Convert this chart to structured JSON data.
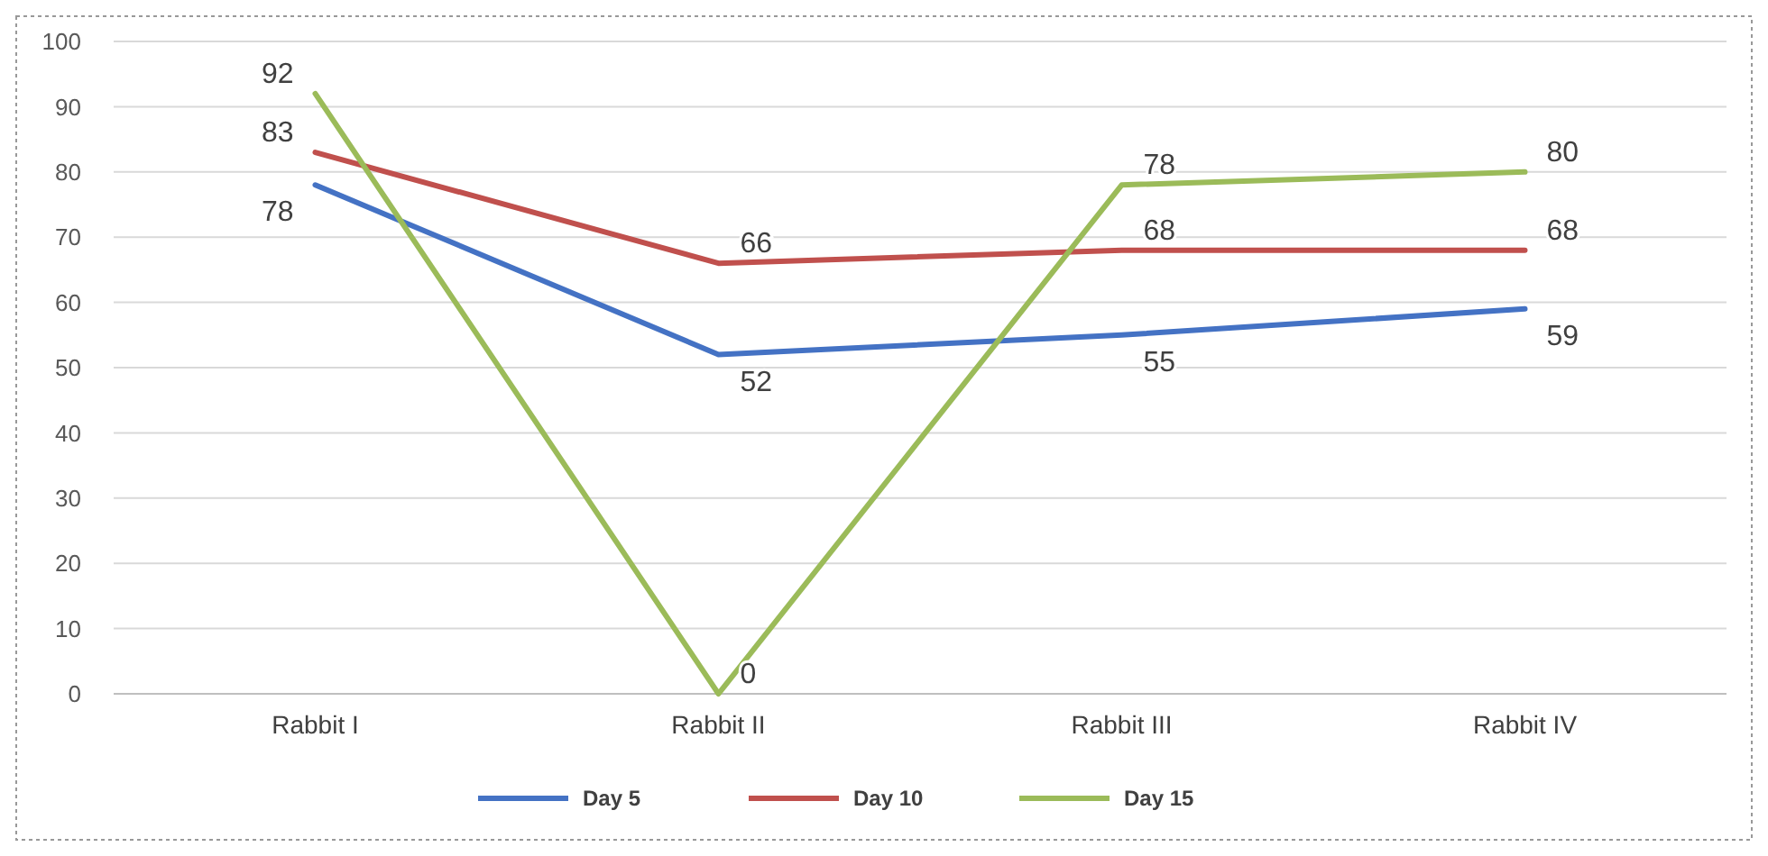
{
  "chart_data": {
    "type": "line",
    "categories": [
      "Rabbit I",
      "Rabbit II",
      "Rabbit III",
      "Rabbit IV"
    ],
    "series": [
      {
        "name": "Day 5",
        "color": "#4472c4",
        "values": [
          78,
          52,
          55,
          59
        ]
      },
      {
        "name": "Day 10",
        "color": "#c0504d",
        "values": [
          83,
          66,
          68,
          68
        ]
      },
      {
        "name": "Day 15",
        "color": "#9bbb59",
        "values": [
          92,
          0,
          78,
          80
        ]
      }
    ],
    "ylim": [
      0,
      100
    ],
    "yticks": [
      0,
      10,
      20,
      30,
      40,
      50,
      60,
      70,
      80,
      90,
      100
    ],
    "grid": "y",
    "legend": "bottom",
    "data_labels": true,
    "marker": "none",
    "line_style": "solid"
  }
}
